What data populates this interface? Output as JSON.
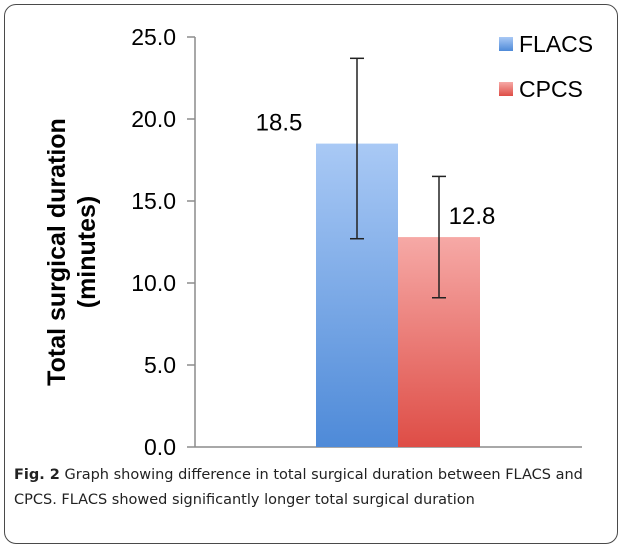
{
  "chart_data": {
    "type": "bar",
    "categories": [
      ""
    ],
    "series": [
      {
        "name": "FLACS",
        "values": [
          18.5
        ],
        "error_low": [
          12.7
        ],
        "error_high": [
          23.7
        ],
        "color_top": "#a9c9f5",
        "color_bottom": "#4e8ad8"
      },
      {
        "name": "CPCS",
        "values": [
          12.8
        ],
        "error_low": [
          9.1
        ],
        "error_high": [
          16.5
        ],
        "color_top": "#f6a9a6",
        "color_bottom": "#de4d46"
      }
    ],
    "data_labels": [
      "18.5",
      "12.8"
    ],
    "yticks": [
      "0.0",
      "5.0",
      "10.0",
      "15.0",
      "20.0",
      "25.0"
    ],
    "ylabel_lines": [
      "Total surgical duration",
      "(minutes)"
    ],
    "ylim": [
      0,
      25
    ],
    "legend_position": "top-right",
    "grid": false
  },
  "caption": {
    "label": "Fig. 2",
    "text": " Graph showing difference in total surgical duration between FLACS and CPCS. FLACS showed significantly longer total surgical duration"
  }
}
